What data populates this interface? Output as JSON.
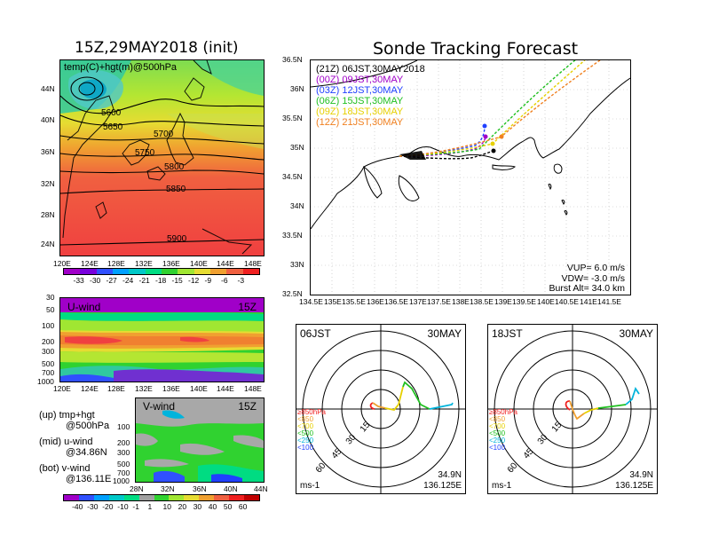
{
  "left_title": "15Z,29MAY2018 (init)",
  "right_title": "Sonde Tracking Forecast",
  "temp_panel": {
    "label": "temp(C)+hgt(m)@500hPa",
    "lat_ticks": [
      "44N",
      "40N",
      "36N",
      "32N",
      "28N",
      "24N"
    ],
    "lon_ticks": [
      "120E",
      "124E",
      "128E",
      "132E",
      "136E",
      "140E",
      "144E",
      "148E"
    ],
    "contours": [
      "5600",
      "5650",
      "5700",
      "5750",
      "5800",
      "5850",
      "5900"
    ],
    "colorbar_labels": [
      "-33",
      "-30",
      "-27",
      "-24",
      "-21",
      "-18",
      "-15",
      "-12",
      "-9",
      "-6",
      "-3"
    ],
    "colorbar_colors": [
      "#a000c8",
      "#7800dc",
      "#3050ff",
      "#00a0ff",
      "#00c8c8",
      "#00dc82",
      "#30d230",
      "#a0e632",
      "#e6dc32",
      "#f0a030",
      "#f06040",
      "#f02020"
    ]
  },
  "uwind_panel": {
    "label": "U-wind",
    "time": "15Z",
    "p_ticks": [
      "30",
      "50",
      "100",
      "200",
      "300",
      "500",
      "700",
      "1000"
    ],
    "lon_ticks": [
      "120E",
      "124E",
      "128E",
      "132E",
      "136E",
      "140E",
      "144E",
      "148E"
    ]
  },
  "vwind_panel": {
    "label": "V-wind",
    "time": "15Z",
    "p_ticks": [
      "100",
      "200",
      "300",
      "500",
      "700",
      "1000"
    ],
    "lat_ticks": [
      "28N",
      "32N",
      "36N",
      "40N",
      "44N"
    ]
  },
  "side_notes": [
    {
      "a": "(up) tmp+hgt",
      "b": "@500hPa"
    },
    {
      "a": "(mid) u-wind",
      "b": "@34.86N"
    },
    {
      "a": "(bot) v-wind",
      "b": "@136.11E"
    }
  ],
  "wind_colorbar": {
    "labels": [
      "-40",
      "-30",
      "-20",
      "-10",
      "-1",
      "1",
      "10",
      "20",
      "30",
      "40",
      "50",
      "60"
    ],
    "colors": [
      "#a000c8",
      "#3050ff",
      "#00a0ff",
      "#00c8c8",
      "#00dc82",
      "#a0a0a0",
      "#30d230",
      "#a0e632",
      "#e6dc32",
      "#f0a030",
      "#f06040",
      "#f02020",
      "#c00000"
    ]
  },
  "track_map": {
    "lat_ticks": [
      "36.5N",
      "36N",
      "35.5N",
      "35N",
      "34.5N",
      "34N",
      "33.5N",
      "33N",
      "32.5N"
    ],
    "lon_ticks": [
      "134.5E",
      "135E",
      "135.5E",
      "136E",
      "136.5E",
      "137E",
      "137.5E",
      "138E",
      "138.5E",
      "139E",
      "139.5E",
      "140E",
      "140.5E",
      "141E",
      "141.5E"
    ],
    "legend": [
      {
        "text": "(21Z) 06JST,30MAY2018",
        "color": "#000000"
      },
      {
        "text": "(00Z) 09JST,30MAY",
        "color": "#a000c8"
      },
      {
        "text": "(03Z) 12JST,30MAY",
        "color": "#2040ff"
      },
      {
        "text": "(06Z) 15JST,30MAY",
        "color": "#20c020"
      },
      {
        "text": "(09Z) 18JST,30MAY",
        "color": "#e6d000"
      },
      {
        "text": "(12Z) 21JST,30MAY",
        "color": "#f08020"
      }
    ],
    "params": [
      "VUP=  6.0 m/s",
      "VDW= -3.0 m/s",
      "Burst Alt= 34.0 km"
    ]
  },
  "hodo_left": {
    "time": "06JST",
    "date": "30MAY",
    "lat": "34.9N",
    "lon": "136.125E",
    "unit": "ms-1"
  },
  "hodo_right": {
    "time": "18JST",
    "date": "30MAY",
    "lat": "34.9N",
    "lon": "136.125E",
    "unit": "ms-1"
  },
  "hodo_rings": [
    "15",
    "30",
    "45",
    "60"
  ],
  "hodo_pressure_legend": [
    {
      "text": "≥850hPa",
      "color": "#f02020"
    },
    {
      "text": "<850",
      "color": "#f0a030"
    },
    {
      "text": "<700",
      "color": "#e6d000"
    },
    {
      "text": "<500",
      "color": "#20c020"
    },
    {
      "text": "<250",
      "color": "#00b4dc"
    },
    {
      "text": "<100",
      "color": "#2040ff"
    }
  ]
}
